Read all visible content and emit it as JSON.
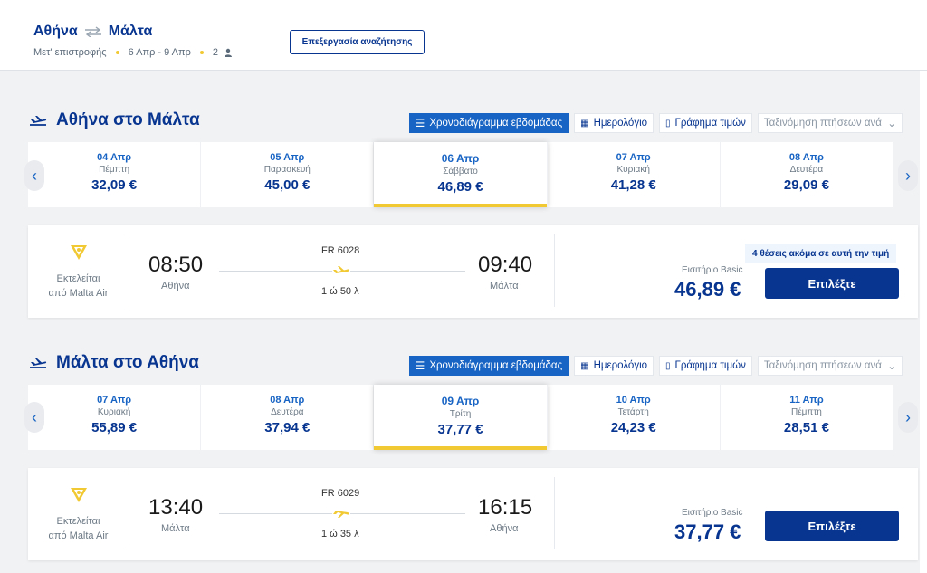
{
  "header": {
    "origin": "Αθήνα",
    "destination": "Μάλτα",
    "trip_type": "Μετ' επιστροφής",
    "dates": "6 Απρ - 9 Απρ",
    "passengers": "2",
    "edit_label": "Επεξεργασία αναζήτησης"
  },
  "view_tabs": {
    "weekly": "Χρονοδιάγραμμα εβδομάδας",
    "calendar": "Ημερολόγιο",
    "price_graph": "Γράφημα τιμών",
    "sort_placeholder": "Ταξινόμηση πτήσεων ανά"
  },
  "outbound": {
    "title": "Αθήνα στο Μάλτα",
    "dates": [
      {
        "date": "04 Απρ",
        "weekday": "Πέμπτη",
        "price": "32,09 €"
      },
      {
        "date": "05 Απρ",
        "weekday": "Παρασκευή",
        "price": "45,00 €"
      },
      {
        "date": "06 Απρ",
        "weekday": "Σάββατο",
        "price": "46,89 €"
      },
      {
        "date": "07 Απρ",
        "weekday": "Κυριακή",
        "price": "41,28 €"
      },
      {
        "date": "08 Απρ",
        "weekday": "Δευτέρα",
        "price": "29,09 €"
      }
    ],
    "selected_index": 2,
    "flight": {
      "operator_line1": "Εκτελείται",
      "operator_line2": "από Malta Air",
      "dep_time": "08:50",
      "dep_city": "Αθήνα",
      "arr_time": "09:40",
      "arr_city": "Μάλτα",
      "flight_number": "FR 6028",
      "duration": "1 ώ 50 λ",
      "seats_badge": "4 θέσεις ακόμα σε αυτή την τιμή",
      "fare_label": "Εισιτήριο Basic",
      "price": "46,89 €",
      "select_label": "Επιλέξτε"
    }
  },
  "inbound": {
    "title": "Μάλτα στο Αθήνα",
    "dates": [
      {
        "date": "07 Απρ",
        "weekday": "Κυριακή",
        "price": "55,89 €"
      },
      {
        "date": "08 Απρ",
        "weekday": "Δευτέρα",
        "price": "37,94 €"
      },
      {
        "date": "09 Απρ",
        "weekday": "Τρίτη",
        "price": "37,77 €"
      },
      {
        "date": "10 Απρ",
        "weekday": "Τετάρτη",
        "price": "24,23 €"
      },
      {
        "date": "11 Απρ",
        "weekday": "Πέμπτη",
        "price": "28,51 €"
      }
    ],
    "selected_index": 2,
    "flight": {
      "operator_line1": "Εκτελείται",
      "operator_line2": "από Malta Air",
      "dep_time": "13:40",
      "dep_city": "Μάλτα",
      "arr_time": "16:15",
      "arr_city": "Αθήνα",
      "flight_number": "FR 6029",
      "duration": "1 ώ 35 λ",
      "fare_label": "Εισιτήριο Basic",
      "price": "37,77 €",
      "select_label": "Επιλέξτε"
    }
  },
  "colors": {
    "brand_blue": "#073590",
    "accent_blue": "#1864c4",
    "accent_yellow": "#f1c933"
  }
}
